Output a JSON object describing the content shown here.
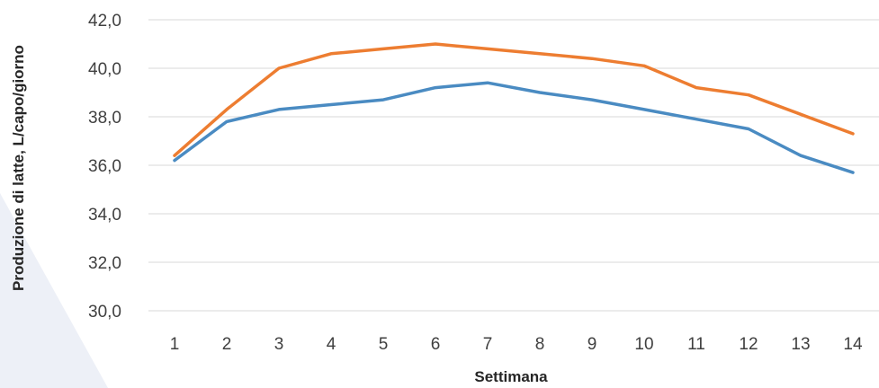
{
  "chart_data": {
    "type": "line",
    "title": "",
    "xlabel": "Settimana",
    "ylabel": "Produzione di latte, L/capo/giorno",
    "categories": [
      "1",
      "2",
      "3",
      "4",
      "5",
      "6",
      "7",
      "8",
      "9",
      "10",
      "11",
      "12",
      "13",
      "14"
    ],
    "ylim": [
      30,
      42
    ],
    "yticks": [
      "30,0",
      "32,0",
      "34,0",
      "36,0",
      "38,0",
      "40,0",
      "42,0"
    ],
    "grid": true,
    "legend": "none",
    "series": [
      {
        "color": "#ed7d31",
        "values": [
          36.4,
          38.3,
          40.0,
          40.6,
          40.8,
          41.0,
          40.8,
          40.6,
          40.4,
          40.1,
          39.2,
          38.9,
          38.1,
          37.3
        ]
      },
      {
        "color": "#4a8bc2",
        "values": [
          36.2,
          37.8,
          38.3,
          38.5,
          38.7,
          39.2,
          39.4,
          39.0,
          38.7,
          38.3,
          37.9,
          37.5,
          36.4,
          35.7
        ]
      }
    ]
  }
}
